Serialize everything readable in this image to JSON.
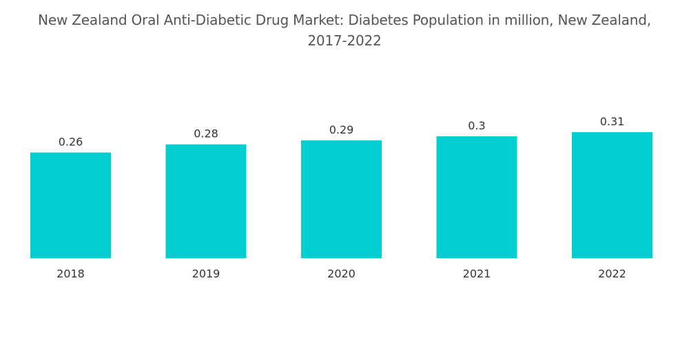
{
  "colors": {
    "bar": "#00ced1",
    "title": "#555555",
    "text": "#333333",
    "background": "#ffffff"
  },
  "chart_data": {
    "type": "bar",
    "title": "New Zealand Oral Anti-Diabetic Drug Market: Diabetes Population in million, New Zealand,\n2017-2022",
    "xlabel": "",
    "ylabel": "",
    "categories": [
      "2018",
      "2019",
      "2020",
      "2021",
      "2022"
    ],
    "values": [
      0.26,
      0.28,
      0.29,
      0.3,
      0.31
    ],
    "data_labels": [
      "0.26",
      "0.28",
      "0.29",
      "0.3",
      "0.31"
    ],
    "ylim": [
      0,
      0.31
    ],
    "grid": false,
    "legend": "none"
  }
}
